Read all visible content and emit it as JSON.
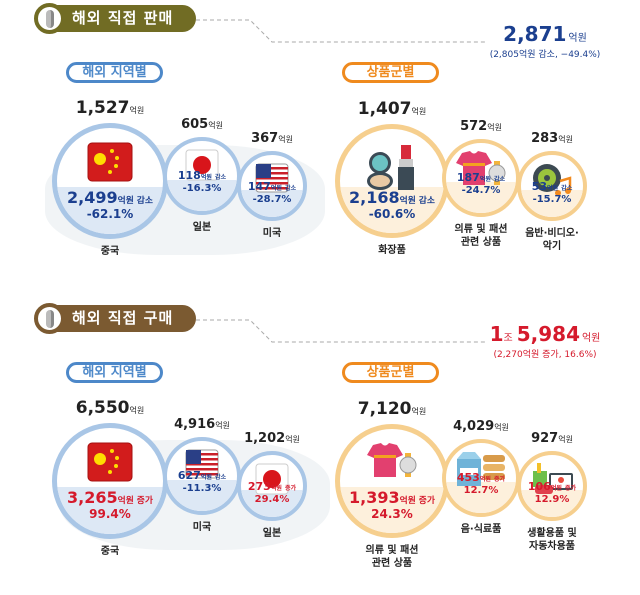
{
  "colors": {
    "decrease": "#1b3f8f",
    "increase": "#d51a2c",
    "region_accent": "#4d88c9",
    "region_band": "#dde8f5",
    "region_ring": "#a9c6e6",
    "category_accent": "#ef8a1e",
    "category_band": "#fdf0dc",
    "category_ring": "#f6cf8e"
  },
  "sections": [
    {
      "title": "해외 직접 판매",
      "header_color": "#716c24",
      "trend": "decrease",
      "total": {
        "prefix": "",
        "value": "2,871",
        "unit": "억원",
        "note": "(2,805억원 감소, −49.4%)"
      },
      "region": {
        "label": "해외 지역별",
        "items": [
          {
            "amount": "1,527",
            "unit": "억원",
            "change_value": "2,499",
            "change_unit": "억원",
            "change_word": "감소",
            "change_pct": "-62.1%",
            "name": [
              "중국"
            ],
            "icon": "china-flag-icon"
          },
          {
            "amount": "605",
            "unit": "억원",
            "change_value": "118",
            "change_unit": "억원",
            "change_word": "감소",
            "change_pct": "-16.3%",
            "name": [
              "일본"
            ],
            "icon": "japan-flag-icon"
          },
          {
            "amount": "367",
            "unit": "억원",
            "change_value": "147",
            "change_unit": "억원",
            "change_word": "감소",
            "change_pct": "-28.7%",
            "name": [
              "미국"
            ],
            "icon": "usa-flag-icon"
          }
        ]
      },
      "category": {
        "label": "상품군별",
        "items": [
          {
            "amount": "1,407",
            "unit": "억원",
            "change_value": "2,168",
            "change_unit": "억원",
            "change_word": "감소",
            "change_pct": "-60.6%",
            "name": [
              "화장품"
            ],
            "icon": "cosmetics-icon"
          },
          {
            "amount": "572",
            "unit": "억원",
            "change_value": "187",
            "change_unit": "억원",
            "change_word": "감소",
            "change_pct": "-24.7%",
            "name": [
              "의류 및 패션",
              "관련 상품"
            ],
            "icon": "clothing-watch-icon"
          },
          {
            "amount": "283",
            "unit": "억원",
            "change_value": "53",
            "change_unit": "억원",
            "change_word": "감소",
            "change_pct": "-15.7%",
            "name": [
              "음반·비디오·",
              "악기"
            ],
            "icon": "music-disc-icon"
          }
        ]
      }
    },
    {
      "title": "해외 직접 구매",
      "header_color": "#7b5a31",
      "trend": "increase",
      "total": {
        "prefix": "1",
        "prefix_unit": "조",
        "value": "5,984",
        "unit": "억원",
        "note": "(2,270억원 증가, 16.6%)"
      },
      "region": {
        "label": "해외 지역별",
        "items": [
          {
            "amount": "6,550",
            "unit": "억원",
            "change_value": "3,265",
            "change_unit": "억원",
            "change_word": "증가",
            "change_pct": "99.4%",
            "name": [
              "중국"
            ],
            "icon": "china-flag-icon",
            "trend": "increase"
          },
          {
            "amount": "4,916",
            "unit": "억원",
            "change_value": "627",
            "change_unit": "억원",
            "change_word": "감소",
            "change_pct": "-11.3%",
            "name": [
              "미국"
            ],
            "icon": "usa-flag-icon",
            "trend": "decrease"
          },
          {
            "amount": "1,202",
            "unit": "억원",
            "change_value": "273",
            "change_unit": "억원",
            "change_word": "증가",
            "change_pct": "29.4%",
            "name": [
              "일본"
            ],
            "icon": "japan-flag-icon",
            "trend": "increase"
          }
        ]
      },
      "category": {
        "label": "상품군별",
        "items": [
          {
            "amount": "7,120",
            "unit": "억원",
            "change_value": "1,393",
            "change_unit": "억원",
            "change_word": "증가",
            "change_pct": "24.3%",
            "name": [
              "의류 및 패션",
              "관련 상품"
            ],
            "icon": "clothing-watch-icon"
          },
          {
            "amount": "4,029",
            "unit": "억원",
            "change_value": "453",
            "change_unit": "억원",
            "change_word": "증가",
            "change_pct": "12.7%",
            "name": [
              "음·식료품"
            ],
            "icon": "milk-food-icon"
          },
          {
            "amount": "927",
            "unit": "억원",
            "change_value": "106",
            "change_unit": "억원",
            "change_word": "증가",
            "change_pct": "12.9%",
            "name": [
              "생활용품 및",
              "자동차용품"
            ],
            "icon": "household-car-icon"
          }
        ]
      }
    }
  ]
}
